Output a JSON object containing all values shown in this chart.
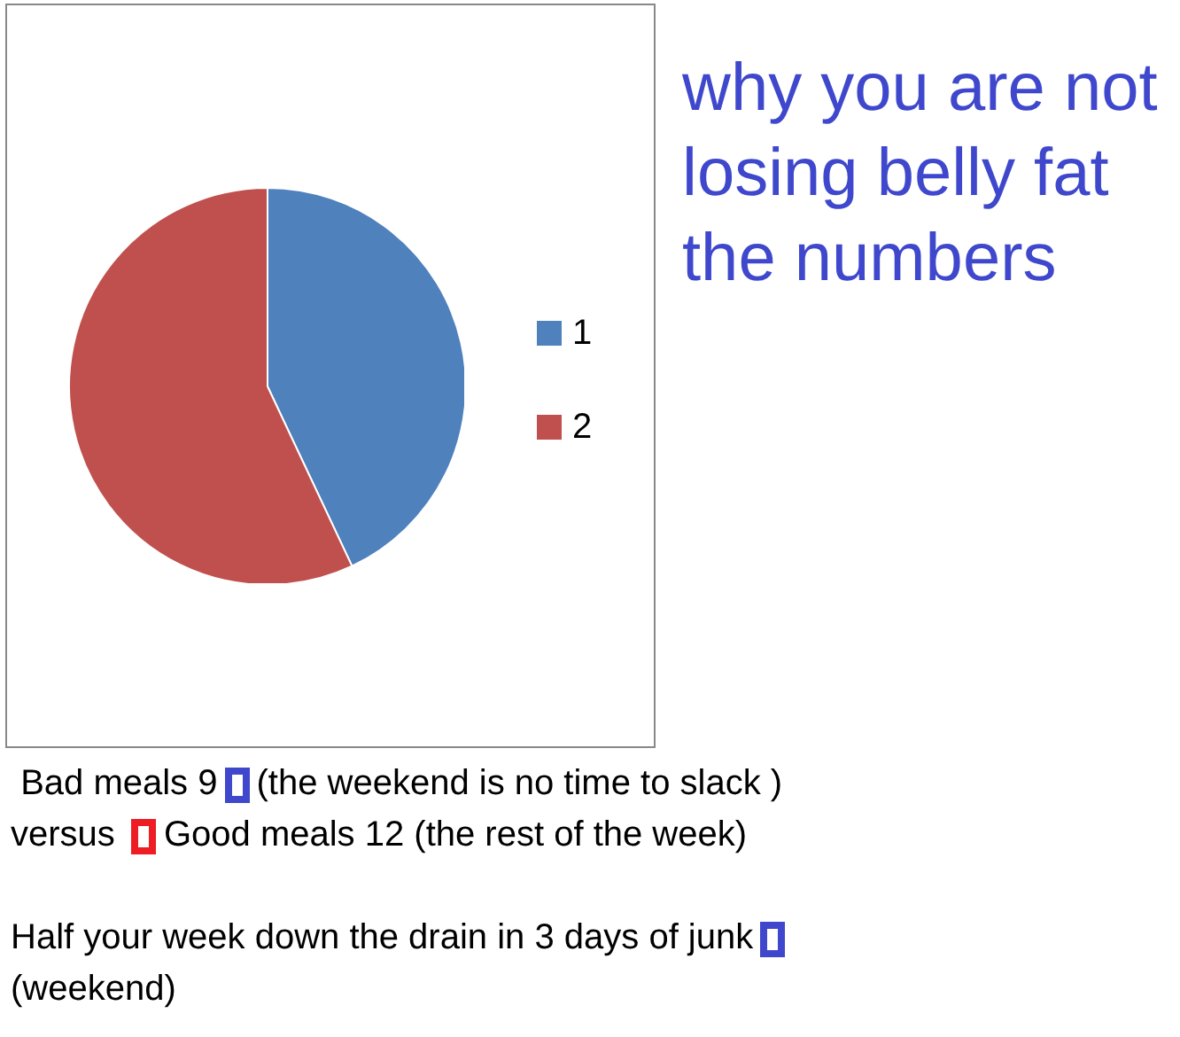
{
  "chart_data": {
    "type": "pie",
    "title": "why  you are not losing belly fat the numbers",
    "categories": [
      "1",
      "2"
    ],
    "values": [
      43,
      57
    ],
    "colors": [
      "#4f81bd",
      "#c0504d"
    ],
    "legend": "right",
    "annotations": [
      "Bad meals 9",
      "(the weekend is no time to slack )",
      "versus",
      "Good meals 12 (the rest of the week)",
      "Half your week down the drain in 3 days of junk",
      "(weekend)"
    ]
  }
}
